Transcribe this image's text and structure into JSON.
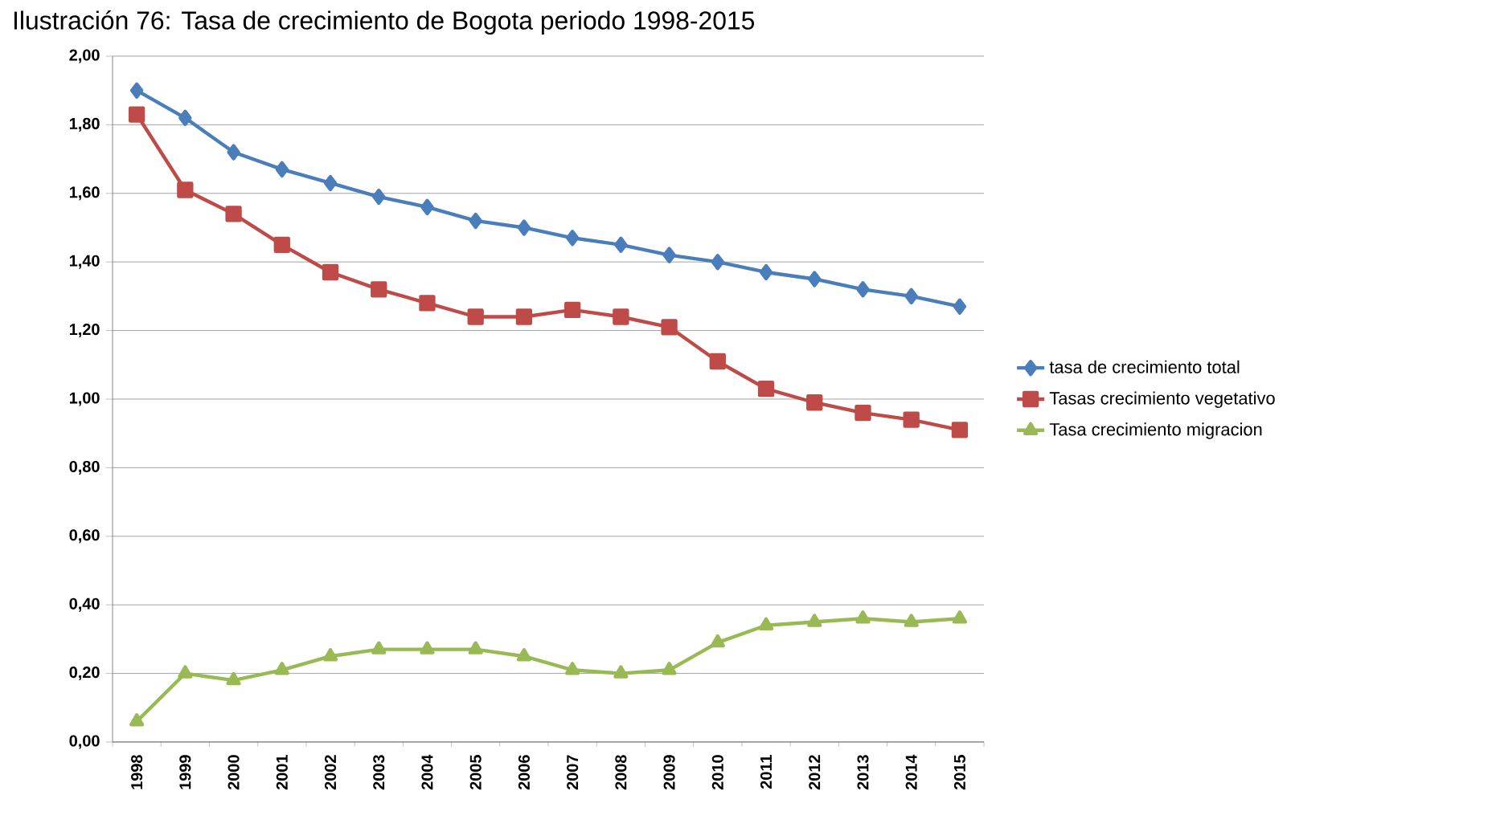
{
  "chart_data": {
    "type": "line",
    "title": "Ilustración 76: Tasa de crecimiento de Bogota periodo 1998-2015",
    "categories": [
      "1998",
      "1999",
      "2000",
      "2001",
      "2002",
      "2003",
      "2004",
      "2005",
      "2006",
      "2007",
      "2008",
      "2009",
      "2010",
      "2011",
      "2012",
      "2013",
      "2014",
      "2015"
    ],
    "series": [
      {
        "name": "tasa de crecimiento total",
        "color": "#4a7ebb",
        "marker": "diamond",
        "values": [
          1.9,
          1.82,
          1.72,
          1.67,
          1.63,
          1.59,
          1.56,
          1.52,
          1.5,
          1.47,
          1.45,
          1.42,
          1.4,
          1.37,
          1.35,
          1.32,
          1.3,
          1.27
        ]
      },
      {
        "name": "Tasas crecimiento vegetativo",
        "color": "#be4b48",
        "marker": "square",
        "values": [
          1.83,
          1.61,
          1.54,
          1.45,
          1.37,
          1.32,
          1.28,
          1.24,
          1.24,
          1.26,
          1.24,
          1.21,
          1.11,
          1.03,
          0.99,
          0.96,
          0.94,
          0.91
        ]
      },
      {
        "name": "Tasa crecimiento migracion",
        "color": "#98b954",
        "marker": "triangle",
        "values": [
          0.06,
          0.2,
          0.18,
          0.21,
          0.25,
          0.27,
          0.27,
          0.27,
          0.25,
          0.21,
          0.2,
          0.21,
          0.29,
          0.34,
          0.35,
          0.36,
          0.35,
          0.36
        ]
      }
    ],
    "ylim": [
      0,
      2
    ],
    "yticks": [
      {
        "value": 0,
        "label": "0,00"
      },
      {
        "value": 0.2,
        "label": "0,20"
      },
      {
        "value": 0.4,
        "label": "0,40"
      },
      {
        "value": 0.6,
        "label": "0,60"
      },
      {
        "value": 0.8,
        "label": "0,80"
      },
      {
        "value": 1,
        "label": "1,00"
      },
      {
        "value": 1.2,
        "label": "1,20"
      },
      {
        "value": 1.4,
        "label": "1,40"
      },
      {
        "value": 1.6,
        "label": "1,60"
      },
      {
        "value": 1.8,
        "label": "1,80"
      },
      {
        "value": 2,
        "label": "2,00"
      }
    ],
    "grid": "y",
    "legend": "right",
    "line_style": "solid"
  }
}
